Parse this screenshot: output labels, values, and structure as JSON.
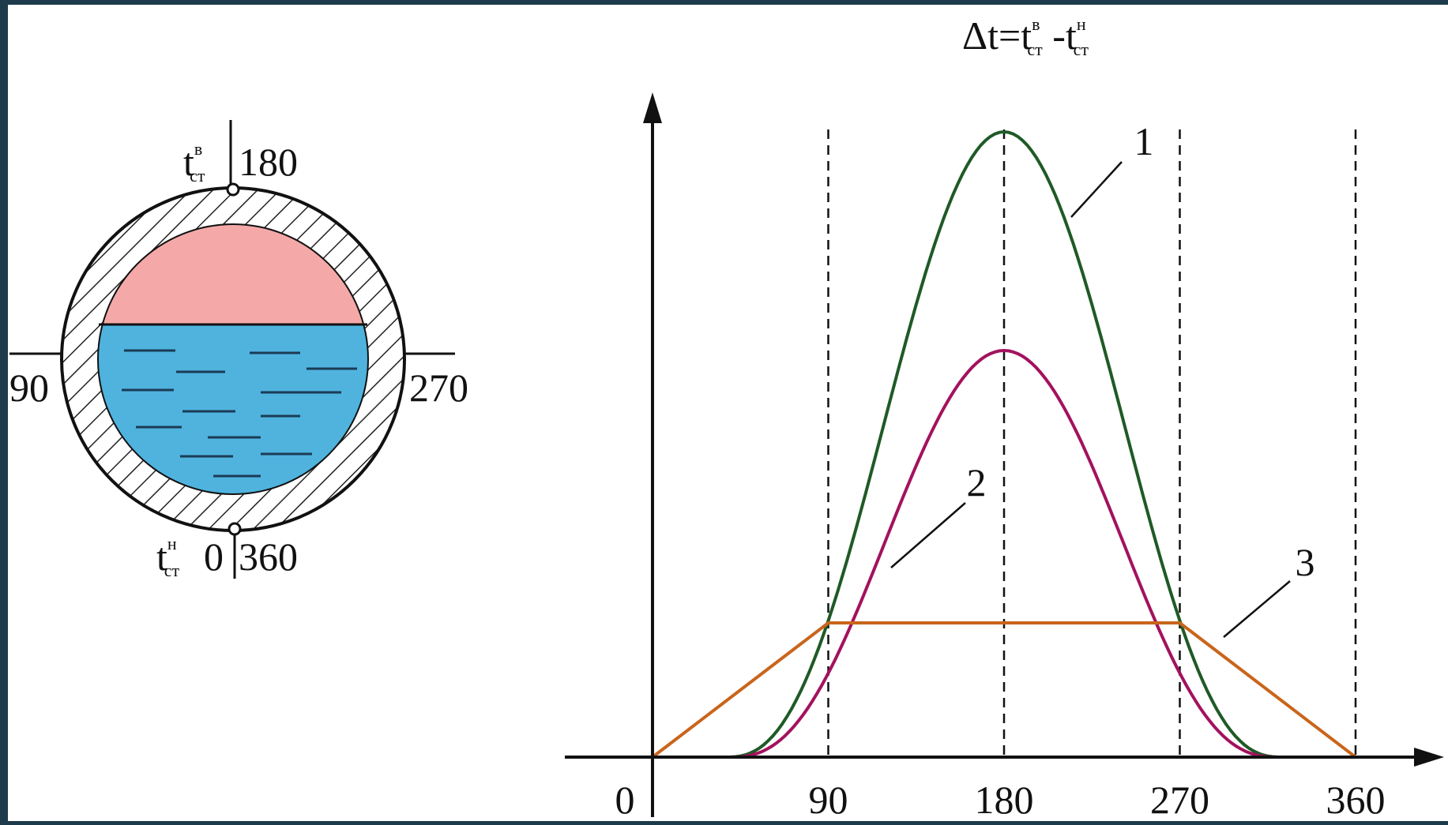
{
  "title": {
    "main": "Δt=t",
    "sup1": "в",
    "sub1": "ст",
    "mid": " -t",
    "sup2": "н",
    "sub2": "ст"
  },
  "cross_section": {
    "top": {
      "symbol": "t",
      "sup": "в",
      "sub": "ст",
      "angle": "180"
    },
    "left": "90",
    "right": "270",
    "bottom": {
      "symbol": "t",
      "sup": "н",
      "sub": "ст",
      "angle_start": "0",
      "angle_end": "360"
    }
  },
  "plot": {
    "xlim": [
      0,
      360
    ],
    "xticks": [
      0,
      90,
      180,
      270,
      360
    ],
    "curve_labels": [
      "1",
      "2",
      "3"
    ]
  }
}
